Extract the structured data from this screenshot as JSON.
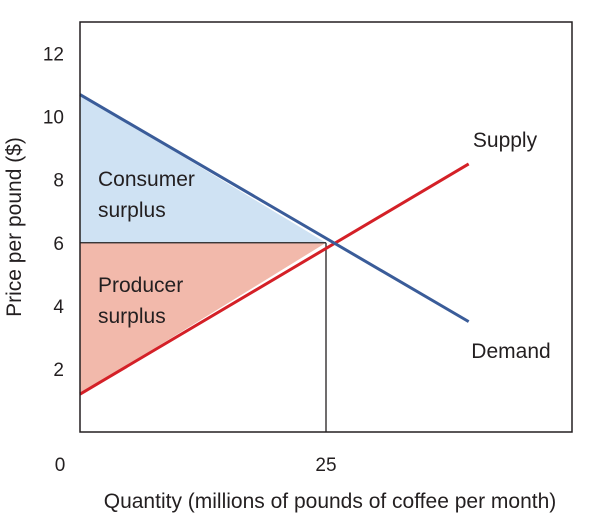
{
  "chart_data": {
    "type": "line",
    "xlabel": "Quantity (millions of pounds of coffee per month)",
    "ylabel": "Price per pound ($)",
    "xlim": [
      0,
      50
    ],
    "ylim": [
      0,
      13
    ],
    "x_ticks": [
      {
        "value": 0,
        "label": "0"
      },
      {
        "value": 25,
        "label": "25"
      }
    ],
    "y_ticks": [
      {
        "value": 2,
        "label": "2"
      },
      {
        "value": 4,
        "label": "4"
      },
      {
        "value": 6,
        "label": "6"
      },
      {
        "value": 8,
        "label": "8"
      },
      {
        "value": 10,
        "label": "10"
      },
      {
        "value": 12,
        "label": "12"
      }
    ],
    "series": [
      {
        "name": "Supply",
        "color": "#d42027",
        "points": [
          [
            0,
            1.2
          ],
          [
            39.5,
            8.5
          ]
        ]
      },
      {
        "name": "Demand",
        "color": "#3a5c99",
        "points": [
          [
            0,
            10.7
          ],
          [
            39.5,
            3.5
          ]
        ]
      }
    ],
    "equilibrium": {
      "x": 25,
      "y": 6
    },
    "regions": [
      {
        "name": "consumer-surplus",
        "label_lines": [
          "Consumer",
          "surplus"
        ],
        "color": "#cfe2f3",
        "vertices": [
          [
            0,
            10.7
          ],
          [
            0,
            6
          ],
          [
            25,
            6
          ]
        ]
      },
      {
        "name": "producer-surplus",
        "label_lines": [
          "Producer",
          "surplus"
        ],
        "color": "#f2b9ab",
        "vertices": [
          [
            0,
            6
          ],
          [
            0,
            1.2
          ],
          [
            25,
            6
          ]
        ]
      }
    ],
    "grid": false,
    "legend": "none"
  }
}
